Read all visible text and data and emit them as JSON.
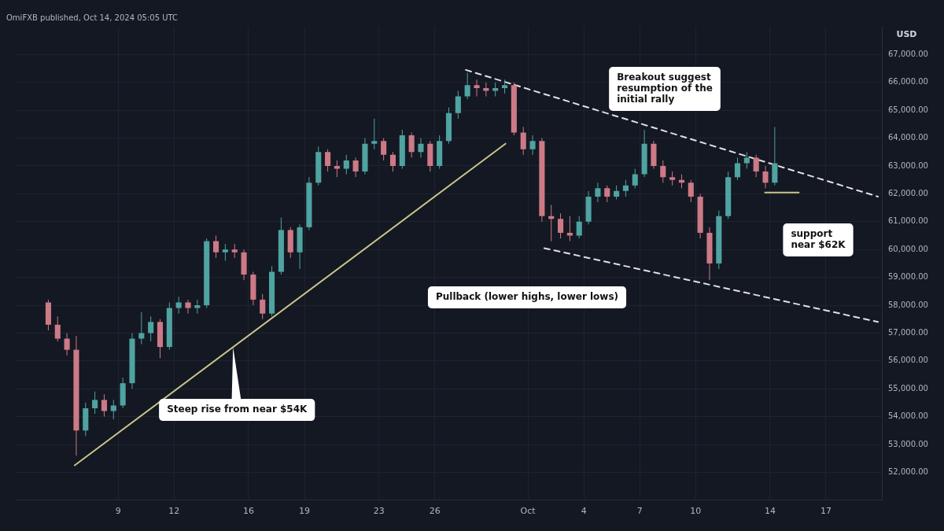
{
  "chart_data": {
    "type": "candlestick",
    "ylabel": "USD",
    "x": [
      "2024-09-05T06:00",
      "2024-09-05T18:00",
      "2024-09-06T06:00",
      "2024-09-06T18:00",
      "2024-09-07T06:00",
      "2024-09-07T18:00",
      "2024-09-08T06:00",
      "2024-09-08T18:00",
      "2024-09-09T06:00",
      "2024-09-09T18:00",
      "2024-09-10T06:00",
      "2024-09-10T18:00",
      "2024-09-11T06:00",
      "2024-09-11T18:00",
      "2024-09-12T06:00",
      "2024-09-12T18:00",
      "2024-09-13T06:00",
      "2024-09-13T18:00",
      "2024-09-14T06:00",
      "2024-09-14T18:00",
      "2024-09-15T06:00",
      "2024-09-15T18:00",
      "2024-09-16T06:00",
      "2024-09-16T18:00",
      "2024-09-17T06:00",
      "2024-09-17T18:00",
      "2024-09-18T06:00",
      "2024-09-18T18:00",
      "2024-09-19T06:00",
      "2024-09-19T18:00",
      "2024-09-20T06:00",
      "2024-09-20T18:00",
      "2024-09-21T06:00",
      "2024-09-21T18:00",
      "2024-09-22T06:00",
      "2024-09-22T18:00",
      "2024-09-23T06:00",
      "2024-09-23T18:00",
      "2024-09-24T06:00",
      "2024-09-24T18:00",
      "2024-09-25T06:00",
      "2024-09-25T18:00",
      "2024-09-26T06:00",
      "2024-09-26T18:00",
      "2024-09-27T06:00",
      "2024-09-27T18:00",
      "2024-09-28T06:00",
      "2024-09-28T18:00",
      "2024-09-29T06:00",
      "2024-09-29T18:00",
      "2024-09-30T06:00",
      "2024-09-30T18:00",
      "2024-10-01T06:00",
      "2024-10-01T18:00",
      "2024-10-02T06:00",
      "2024-10-02T18:00",
      "2024-10-03T06:00",
      "2024-10-03T18:00",
      "2024-10-04T06:00",
      "2024-10-04T18:00",
      "2024-10-05T06:00",
      "2024-10-05T18:00",
      "2024-10-06T06:00",
      "2024-10-06T18:00",
      "2024-10-07T06:00",
      "2024-10-07T18:00",
      "2024-10-08T06:00",
      "2024-10-08T18:00",
      "2024-10-09T06:00",
      "2024-10-09T18:00",
      "2024-10-10T06:00",
      "2024-10-10T18:00",
      "2024-10-11T06:00",
      "2024-10-11T18:00",
      "2024-10-12T06:00",
      "2024-10-12T18:00",
      "2024-10-13T06:00",
      "2024-10-13T18:00",
      "2024-10-14T06:00"
    ],
    "ohlc": [
      [
        58100,
        58200,
        57100,
        57300
      ],
      [
        57300,
        57600,
        56700,
        56800
      ],
      [
        56800,
        57000,
        56200,
        56400
      ],
      [
        56400,
        56900,
        52600,
        53500
      ],
      [
        53500,
        54500,
        53300,
        54300
      ],
      [
        54300,
        54900,
        54100,
        54600
      ],
      [
        54600,
        54800,
        54000,
        54200
      ],
      [
        54200,
        54600,
        53900,
        54400
      ],
      [
        54400,
        55400,
        54300,
        55200
      ],
      [
        55200,
        57000,
        55000,
        56800
      ],
      [
        56800,
        57750,
        56600,
        57000
      ],
      [
        57000,
        57600,
        56700,
        57400
      ],
      [
        57400,
        57500,
        56100,
        56500
      ],
      [
        56500,
        58100,
        56400,
        57900
      ],
      [
        57900,
        58300,
        57700,
        58100
      ],
      [
        58100,
        58200,
        57700,
        57900
      ],
      [
        57900,
        58200,
        57700,
        58000
      ],
      [
        58000,
        60400,
        57900,
        60300
      ],
      [
        60300,
        60500,
        59700,
        59900
      ],
      [
        59900,
        60200,
        59600,
        60000
      ],
      [
        60000,
        60200,
        59700,
        59900
      ],
      [
        59900,
        60000,
        58900,
        59100
      ],
      [
        59100,
        59200,
        58000,
        58200
      ],
      [
        58200,
        58400,
        57500,
        57700
      ],
      [
        57700,
        59400,
        57600,
        59200
      ],
      [
        59200,
        61150,
        59100,
        60700
      ],
      [
        60700,
        60800,
        59700,
        59900
      ],
      [
        59900,
        60900,
        59300,
        60800
      ],
      [
        60800,
        62600,
        60700,
        62400
      ],
      [
        62400,
        63700,
        62300,
        63500
      ],
      [
        63500,
        63600,
        62800,
        63000
      ],
      [
        63000,
        63200,
        62600,
        62900
      ],
      [
        62900,
        63400,
        62700,
        63200
      ],
      [
        63200,
        63300,
        62600,
        62800
      ],
      [
        62800,
        64000,
        62700,
        63800
      ],
      [
        63800,
        64700,
        63600,
        63900
      ],
      [
        63900,
        64000,
        63200,
        63400
      ],
      [
        63400,
        63500,
        62800,
        63000
      ],
      [
        63000,
        64300,
        62900,
        64100
      ],
      [
        64100,
        64200,
        63300,
        63500
      ],
      [
        63500,
        64000,
        63300,
        63800
      ],
      [
        63800,
        63900,
        62800,
        63000
      ],
      [
        63000,
        64100,
        62900,
        63900
      ],
      [
        63900,
        65100,
        63800,
        64900
      ],
      [
        64900,
        65700,
        64700,
        65500
      ],
      [
        65500,
        66350,
        65400,
        65900
      ],
      [
        65900,
        66100,
        65500,
        65800
      ],
      [
        65800,
        66000,
        65500,
        65700
      ],
      [
        65700,
        66000,
        65500,
        65800
      ],
      [
        65800,
        66100,
        65600,
        65900
      ],
      [
        65900,
        66000,
        64100,
        64200
      ],
      [
        64200,
        64400,
        63400,
        63600
      ],
      [
        63600,
        64100,
        63400,
        63900
      ],
      [
        63900,
        64000,
        61000,
        61200
      ],
      [
        61200,
        61600,
        60300,
        61100
      ],
      [
        61100,
        61300,
        60400,
        60600
      ],
      [
        60600,
        61200,
        60300,
        60500
      ],
      [
        60500,
        61200,
        60400,
        61000
      ],
      [
        61000,
        62100,
        60900,
        61900
      ],
      [
        61900,
        62400,
        61700,
        62200
      ],
      [
        62200,
        62300,
        61700,
        61900
      ],
      [
        61900,
        62300,
        61800,
        62100
      ],
      [
        62100,
        62500,
        61900,
        62300
      ],
      [
        62300,
        62900,
        62200,
        62700
      ],
      [
        62700,
        64300,
        62600,
        63800
      ],
      [
        63800,
        63900,
        62900,
        63000
      ],
      [
        63000,
        63200,
        62400,
        62600
      ],
      [
        62600,
        62800,
        62300,
        62500
      ],
      [
        62500,
        62700,
        62200,
        62400
      ],
      [
        62400,
        62500,
        61700,
        61900
      ],
      [
        61900,
        62000,
        60400,
        60600
      ],
      [
        60600,
        60800,
        58900,
        59500
      ],
      [
        59500,
        61400,
        59300,
        61200
      ],
      [
        61200,
        62800,
        61100,
        62600
      ],
      [
        62600,
        63300,
        62500,
        63100
      ],
      [
        63100,
        63500,
        62900,
        63300
      ],
      [
        63300,
        63400,
        62600,
        62800
      ],
      [
        62800,
        63000,
        62200,
        62400
      ],
      [
        62400,
        64400,
        62300,
        63100
      ]
    ],
    "series": [
      {
        "type": "line",
        "color": "#c9c58a",
        "line_style": "solid",
        "x": [
          "2024-09-06T16:00",
          "2024-09-29T19:00"
        ],
        "values": [
          52250,
          63800
        ]
      },
      {
        "type": "line",
        "color": "#e0e0e6",
        "line_style": "dashed",
        "x": [
          "2024-09-27T16:00",
          "2024-10-19T19:00"
        ],
        "values": [
          66450,
          61900
        ]
      },
      {
        "type": "line",
        "color": "#e0e0e6",
        "line_style": "dashed",
        "x": [
          "2024-10-01T21:00",
          "2024-10-19T19:00"
        ],
        "values": [
          60050,
          57400
        ]
      },
      {
        "type": "line",
        "color": "#c9c58a",
        "line_style": "solid",
        "x": [
          "2024-10-13T17:30",
          "2024-10-15T13:00"
        ],
        "values": [
          62050,
          62050
        ]
      }
    ],
    "xlim": [
      "2024-09-03T12:00",
      "2024-10-20T00:00"
    ],
    "xticks": [
      {
        "value": "2024-09-09",
        "label": "9"
      },
      {
        "value": "2024-09-12",
        "label": "12"
      },
      {
        "value": "2024-09-16",
        "label": "16"
      },
      {
        "value": "2024-09-19",
        "label": "19"
      },
      {
        "value": "2024-09-23",
        "label": "23"
      },
      {
        "value": "2024-09-26",
        "label": "26"
      },
      {
        "value": "2024-10-01",
        "label": "Oct"
      },
      {
        "value": "2024-10-04",
        "label": "4"
      },
      {
        "value": "2024-10-07",
        "label": "7"
      },
      {
        "value": "2024-10-10",
        "label": "10"
      },
      {
        "value": "2024-10-14",
        "label": "14"
      },
      {
        "value": "2024-10-17",
        "label": "17"
      }
    ],
    "ylim": [
      51000,
      68000
    ],
    "yticks": [
      {
        "value": 52000,
        "label": "52,000.00"
      },
      {
        "value": 53000,
        "label": "53,000.00"
      },
      {
        "value": 54000,
        "label": "54,000.00"
      },
      {
        "value": 55000,
        "label": "55,000.00"
      },
      {
        "value": 56000,
        "label": "56,000.00"
      },
      {
        "value": 57000,
        "label": "57,000.00"
      },
      {
        "value": 58000,
        "label": "58,000.00"
      },
      {
        "value": 59000,
        "label": "59,000.00"
      },
      {
        "value": 60000,
        "label": "60,000.00"
      },
      {
        "value": 61000,
        "label": "61,000.00"
      },
      {
        "value": 62000,
        "label": "62,000.00"
      },
      {
        "value": 63000,
        "label": "63,000.00"
      },
      {
        "value": 64000,
        "label": "64,000.00"
      },
      {
        "value": 65000,
        "label": "65,000.00"
      },
      {
        "value": 66000,
        "label": "66,000.00"
      },
      {
        "value": 67000,
        "label": "67,000.00"
      }
    ],
    "grid": true,
    "legend": false,
    "annotations": [
      "OmiFXB published, Oct 14, 2024 05:05 UTC",
      {
        "text": "Steep rise from near $54K",
        "x": "2024-09-15T04:00",
        "y": 56500
      },
      "Pullback (lower highs, lower lows)",
      "Breakout suggest\nresumption of the\ninitial rally",
      "support\nnear $62K"
    ]
  }
}
